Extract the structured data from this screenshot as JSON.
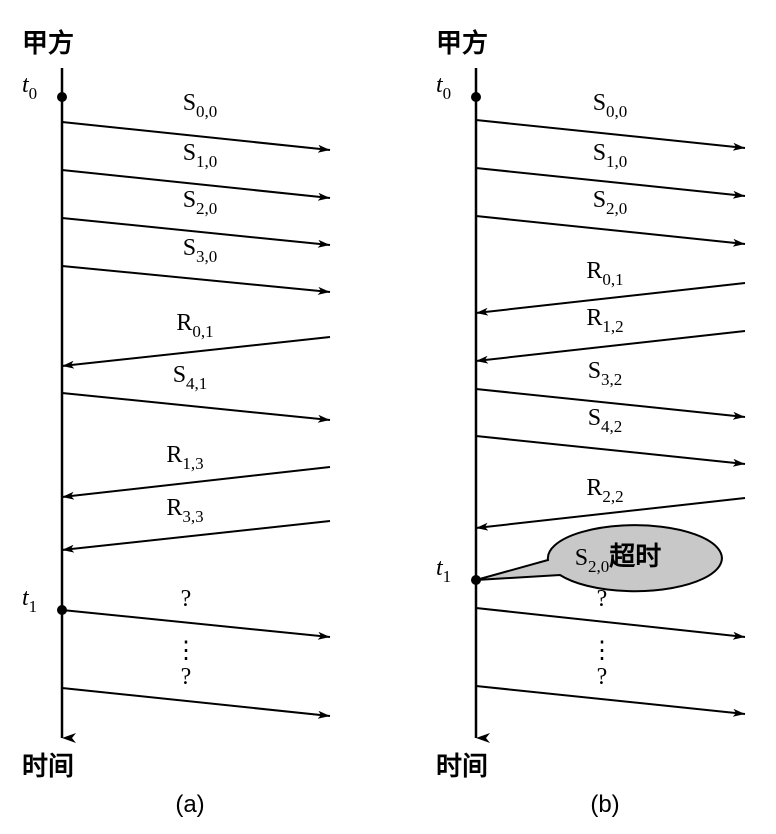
{
  "panels": [
    {
      "caption": "(a)",
      "top_label": "甲方",
      "bottom_label": "时间",
      "t0": {
        "main": "t",
        "sub": "0"
      },
      "t1": {
        "main": "t",
        "sub": "1"
      },
      "messages": [
        {
          "main": "S",
          "sub": "0,0"
        },
        {
          "main": "S",
          "sub": "1,0"
        },
        {
          "main": "S",
          "sub": "2,0"
        },
        {
          "main": "S",
          "sub": "3,0"
        },
        {
          "main": "R",
          "sub": "0,1"
        },
        {
          "main": "S",
          "sub": "4,1"
        },
        {
          "main": "R",
          "sub": "1,3"
        },
        {
          "main": "R",
          "sub": "3,3"
        },
        {
          "main": "?"
        },
        {
          "main": "?"
        }
      ],
      "ellipsis": "⋮"
    },
    {
      "caption": "(b)",
      "top_label": "甲方",
      "bottom_label": "时间",
      "t0": {
        "main": "t",
        "sub": "0"
      },
      "t1": {
        "main": "t",
        "sub": "1"
      },
      "messages": [
        {
          "main": "S",
          "sub": "0,0"
        },
        {
          "main": "S",
          "sub": "1,0"
        },
        {
          "main": "S",
          "sub": "2,0"
        },
        {
          "main": "R",
          "sub": "0,1"
        },
        {
          "main": "R",
          "sub": "1,2"
        },
        {
          "main": "S",
          "sub": "3,2"
        },
        {
          "main": "S",
          "sub": "4,2"
        },
        {
          "main": "R",
          "sub": "2,2"
        },
        {
          "main": "?"
        },
        {
          "main": "?"
        }
      ],
      "ellipsis": "⋮",
      "bubble": {
        "main": "S",
        "sub": "2,0",
        "suffix": "超时"
      }
    }
  ]
}
